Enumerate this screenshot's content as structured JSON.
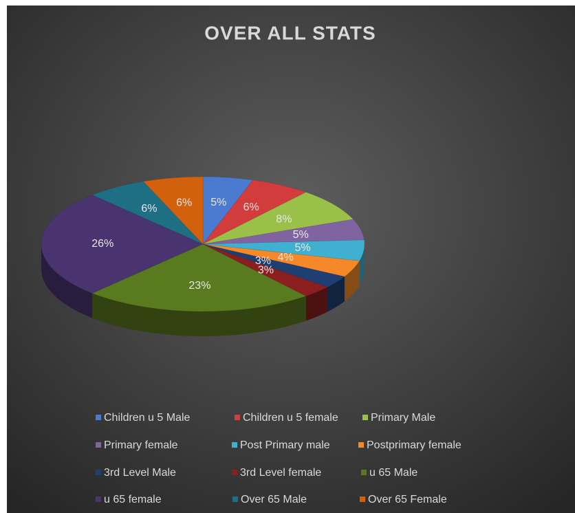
{
  "chart_data": {
    "type": "pie",
    "title": "OVER ALL STATS",
    "categories": [
      "Children u 5 Male",
      "Children u 5 female",
      "Primary Male",
      "Primary female",
      "Post Primary male",
      "Postprimary female",
      "3rd Level Male",
      "3rd Level female",
      "u 65 Male",
      "u 65 female",
      "Over 65 Male",
      "Over 65 Female"
    ],
    "values": [
      5,
      6,
      8,
      5,
      5,
      4,
      3,
      3,
      23,
      26,
      6,
      6
    ],
    "value_labels": [
      "5%",
      "6%",
      "8%",
      "5%",
      "5%",
      "4%",
      "3%",
      "3%",
      "23%",
      "26%",
      "6%",
      "6%"
    ],
    "colors": [
      "#4a7bd0",
      "#d23c3c",
      "#9bc04a",
      "#8064a2",
      "#3fb0d0",
      "#f5892a",
      "#1f3f73",
      "#8b1f1f",
      "#5a7a1f",
      "#4a3470",
      "#1e6f84",
      "#d2600c"
    ],
    "legend": "bottom"
  }
}
